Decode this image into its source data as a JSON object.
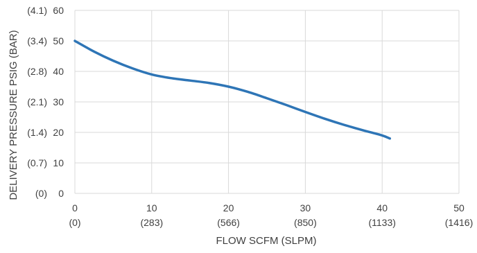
{
  "chart_data": {
    "type": "line",
    "title": "",
    "xlabel": "FLOW SCFM (SLPM)",
    "ylabel": "DELIVERY PRESSURE PSIG (BAR)",
    "xlim": [
      0,
      50
    ],
    "ylim": [
      0,
      60
    ],
    "grid": true,
    "x_ticks": [
      0,
      10,
      20,
      30,
      40,
      50
    ],
    "x_tick_labels": [
      "0",
      "10",
      "20",
      "30",
      "40",
      "50"
    ],
    "x_tick_sublabels": [
      "(0)",
      "(283)",
      "(566)",
      "(850)",
      "(1133)",
      "(1416)"
    ],
    "y_ticks": [
      0,
      10,
      20,
      30,
      40,
      50,
      60
    ],
    "y_tick_labels": [
      "0",
      "10",
      "20",
      "30",
      "40",
      "50",
      "60"
    ],
    "y_tick_sublabels": [
      "(0)",
      "(0.7)",
      "(1.4)",
      "(2.1)",
      "(2.8)",
      "(3.4)",
      "(4.1)"
    ],
    "series": [
      {
        "color": "#2e75b6",
        "x": [
          0,
          2.5,
          5,
          7.5,
          10,
          12.5,
          15,
          17.5,
          20,
          22.5,
          25,
          27.5,
          30,
          32.5,
          35,
          37.5,
          40,
          41
        ],
        "y": [
          50,
          46.5,
          43.5,
          41,
          39,
          37.8,
          37,
          36.2,
          35,
          33.3,
          31.2,
          29,
          26.7,
          24.5,
          22.5,
          20.7,
          19,
          18
        ]
      }
    ]
  },
  "colors": {
    "grid": "#d9d9d9",
    "axis_text": "#404040",
    "line": "#2e75b6"
  }
}
